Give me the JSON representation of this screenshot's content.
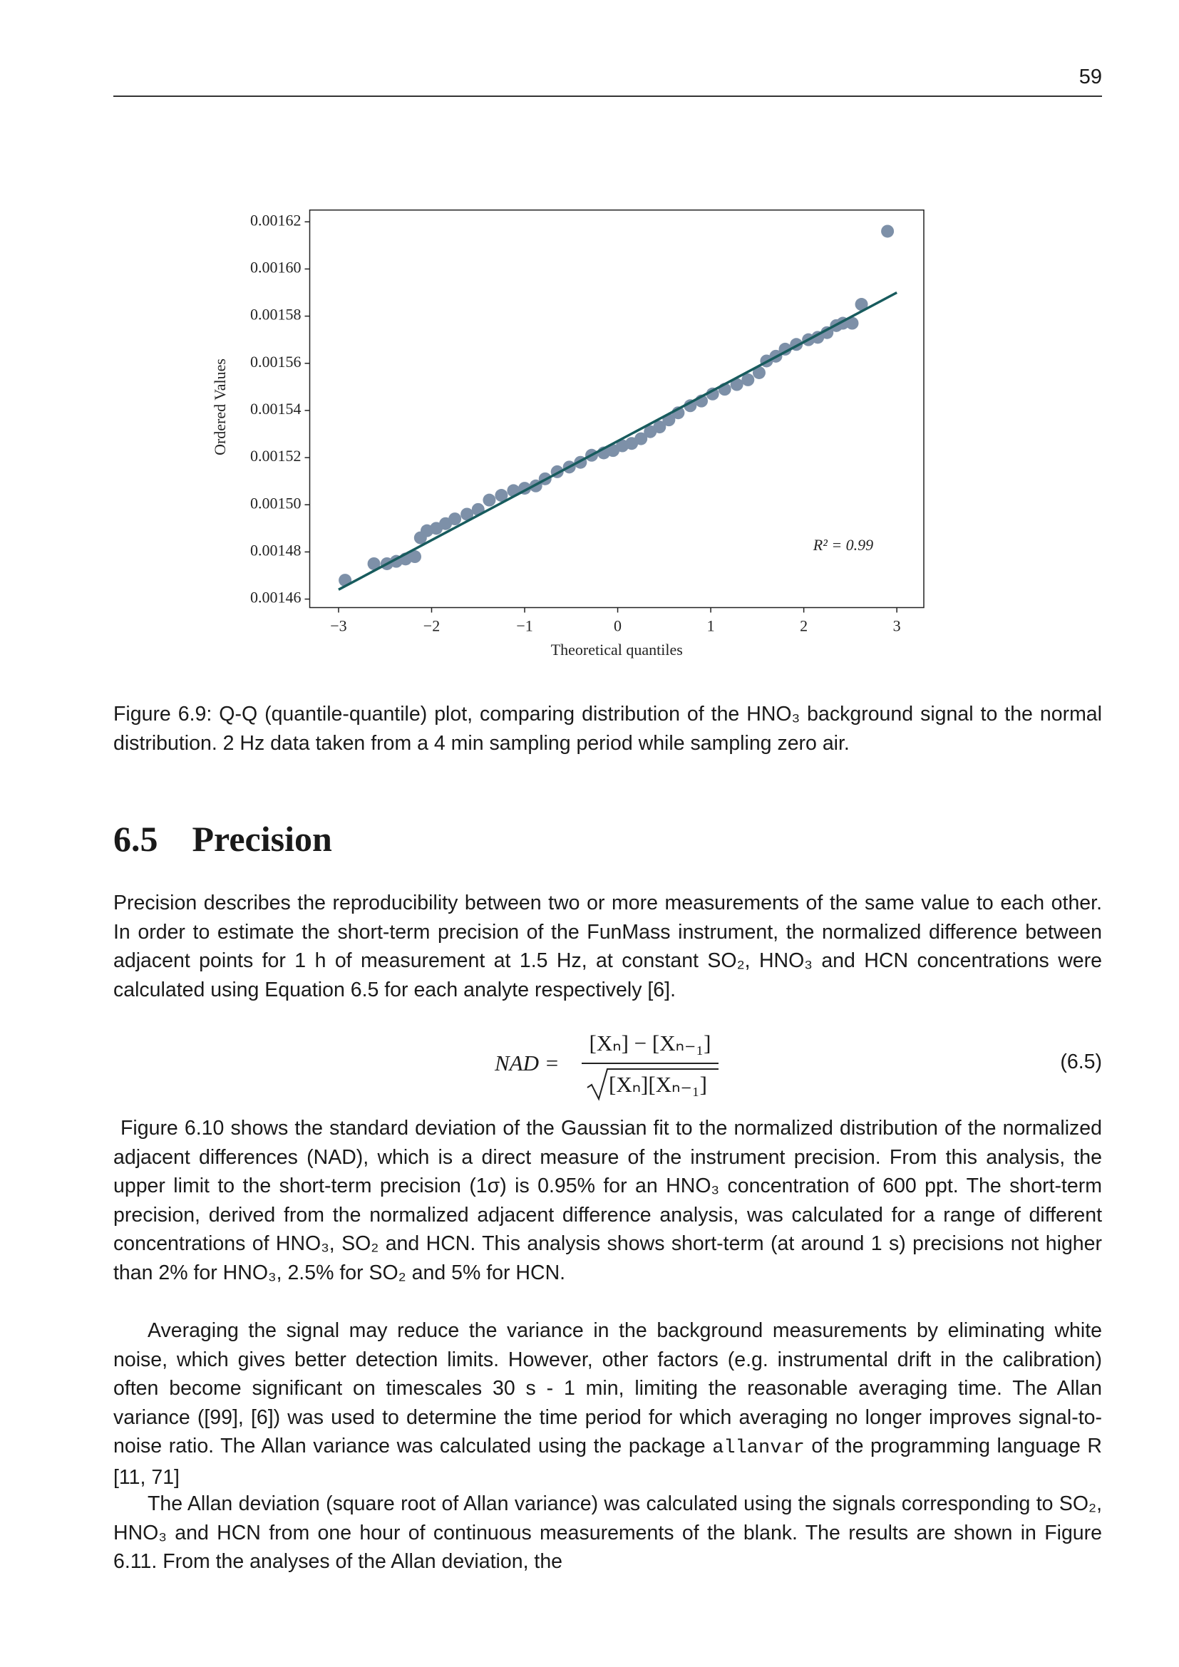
{
  "page_number": "59",
  "chart_data": {
    "type": "scatter",
    "xlabel": "Theoretical quantiles",
    "ylabel": "Ordered Values",
    "annotation": "R² = 0.99",
    "color": "#7d90a8",
    "x": [
      -2.93,
      -2.62,
      -2.48,
      -2.38,
      -2.28,
      -2.18,
      -2.12,
      -2.05,
      -1.95,
      -1.85,
      -1.75,
      -1.62,
      -1.5,
      -1.38,
      -1.25,
      -1.12,
      -1.0,
      -0.88,
      -0.78,
      -0.65,
      -0.52,
      -0.4,
      -0.28,
      -0.15,
      -0.05,
      0.05,
      0.15,
      0.25,
      0.35,
      0.45,
      0.55,
      0.65,
      0.78,
      0.9,
      1.02,
      1.15,
      1.28,
      1.4,
      1.52,
      1.6,
      1.7,
      1.8,
      1.92,
      2.05,
      2.15,
      2.25,
      2.35,
      2.42,
      2.52,
      2.62,
      2.9
    ],
    "y": [
      0.001468,
      0.001475,
      0.001475,
      0.001476,
      0.001477,
      0.001478,
      0.001486,
      0.001489,
      0.00149,
      0.001492,
      0.001494,
      0.001496,
      0.001498,
      0.001502,
      0.001504,
      0.001506,
      0.001507,
      0.001508,
      0.001511,
      0.001514,
      0.001516,
      0.001518,
      0.001521,
      0.001522,
      0.001523,
      0.001525,
      0.001526,
      0.001528,
      0.001531,
      0.001533,
      0.001536,
      0.001539,
      0.001542,
      0.001544,
      0.001547,
      0.001549,
      0.001551,
      0.001553,
      0.001556,
      0.001561,
      0.001563,
      0.001566,
      0.001568,
      0.00157,
      0.001571,
      0.001573,
      0.001576,
      0.001577,
      0.001577,
      0.001585,
      0.001616
    ],
    "line": {
      "x": [
        -3,
        3
      ],
      "y": [
        0.001464,
        0.00159
      ],
      "color": "#175b5d"
    },
    "xlim": [
      -3.31,
      3.29
    ],
    "ylim": [
      0.0014564,
      0.001625
    ],
    "xticks": [
      {
        "value": -3,
        "label": "−3"
      },
      {
        "value": -2,
        "label": "−2"
      },
      {
        "value": -1,
        "label": "−1"
      },
      0,
      1,
      2,
      3
    ],
    "yticks": [
      0.00146,
      0.00148,
      {
        "value": 0.0015,
        "label": "0.00150"
      },
      0.00152,
      0.00154,
      0.00156,
      0.00158,
      {
        "value": 0.0016,
        "label": "0.00160"
      },
      0.00162
    ]
  },
  "caption": "Figure 6.9: Q-Q (quantile-quantile) plot, comparing distribution of the HNO₃ background signal to the normal distribution. 2 Hz data taken from a 4 min sampling period while sampling zero air.",
  "section": {
    "number": "6.5",
    "title": "Precision"
  },
  "paragraphs": [
    "Precision describes the reproducibility between two or more measurements of the same value to each other. In order to estimate the short-term precision of the FunMass instrument, the normalized difference between adjacent points for 1 h of measurement at 1.5 Hz, at constant SO₂, HNO₃ and HCN concentrations were calculated using Equation 6.5 for each analyte respectively [6].",
    "Figure 6.10 shows the standard deviation of the Gaussian fit to the normalized distribution of the normalized adjacent differences (NAD), which is a direct measure of the instrument precision. From this analysis, the upper limit to the short-term precision (1σ) is 0.95% for an HNO₃ concentration of 600 ppt. The short-term precision, derived from the normalized adjacent difference analysis, was calculated for a range of different concentrations of HNO₃, SO₂ and HCN. This analysis shows short-term (at around 1 s) precisions not higher than 2% for HNO₃, 2.5% for SO₂ and 5% for HCN.",
    {
      "before": "Averaging the signal may reduce the variance in the background measurements by eliminating white noise, which gives better detection limits. However, other factors (e.g. instrumental drift in the calibration) often become significant on timescales 30 s - 1 min, limiting the reasonable averaging time. The Allan variance ([99], [6]) was used to determine the time period for which averaging no longer improves signal-to-noise ratio. The Allan variance was calculated using the package",
      "code": "allanvar",
      "after": "of the programming language R [11, 71]"
    },
    "The Allan deviation (square root of Allan variance) was calculated using the signals corresponding to SO₂, HNO₃ and HCN from one hour of continuous measurements of the blank. The results are shown in Figure 6.11. From the analyses of the Allan deviation, the"
  ],
  "equation": {
    "lhs": "NAD =",
    "numerator": "[Xₙ] − [Xₙ₋₁]",
    "denominator": "[Xₙ][Xₙ₋₁]",
    "number": "(6.5)"
  }
}
